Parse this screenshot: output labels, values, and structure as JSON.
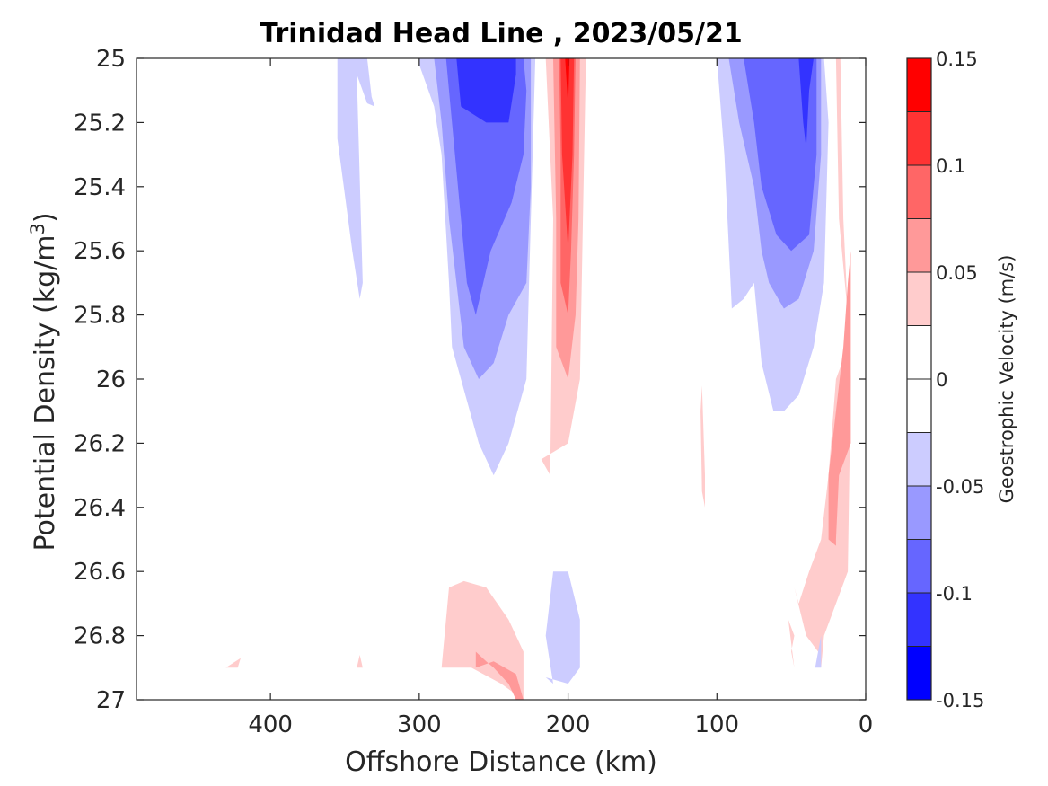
{
  "chart_data": {
    "type": "heatmap",
    "title": "Trinidad Head Line , 2023/05/21",
    "xlabel": "Offshore Distance (km)",
    "ylabel": "Potential Density (kg/m³)",
    "ylabel_parts": {
      "main": "Potential Density (kg/m",
      "sup": "3",
      "end": ")"
    },
    "xlim": [
      490,
      0
    ],
    "ylim": [
      25,
      27
    ],
    "x_reversed": true,
    "y_reversed": true,
    "x_ticks": [
      400,
      300,
      200,
      100,
      0
    ],
    "x_tick_labels": [
      "400",
      "300",
      "200",
      "100",
      "0"
    ],
    "y_ticks": [
      25,
      25.2,
      25.4,
      25.6,
      25.8,
      26,
      26.2,
      26.4,
      26.6,
      26.8,
      27
    ],
    "y_tick_labels": [
      "25",
      "25.2",
      "25.4",
      "25.6",
      "25.8",
      "26",
      "26.2",
      "26.4",
      "26.6",
      "26.8",
      "27"
    ],
    "grid": false,
    "colorbar": {
      "label": "Geostrophic Velocity (m/s)",
      "range": [
        -0.15,
        0.15
      ],
      "levels": [
        -0.15,
        -0.125,
        -0.1,
        -0.075,
        -0.05,
        -0.025,
        0,
        0.025,
        0.05,
        0.075,
        0.1,
        0.125,
        0.15
      ],
      "colors": [
        "#0000ff",
        "#3333ff",
        "#6666ff",
        "#9999ff",
        "#ccccff",
        "#ffffff",
        "#ffffff",
        "#ffcccc",
        "#ff9999",
        "#ff6666",
        "#ff3333",
        "#ff0000"
      ],
      "tick_values": [
        0.15,
        0.1,
        0.05,
        0,
        -0.05,
        -0.1,
        -0.15
      ],
      "tick_labels": [
        "0.15",
        "0.1",
        "0.05",
        "0",
        "-0.05",
        "-0.1",
        "-0.15"
      ]
    },
    "regions": [
      {
        "level": -0.05,
        "color": "#ccccff",
        "points": [
          [
            355,
            25
          ],
          [
            335,
            25
          ],
          [
            332,
            25.12
          ],
          [
            330,
            25.15
          ],
          [
            335,
            25.14
          ],
          [
            342,
            25.05
          ],
          [
            338,
            25.7
          ],
          [
            340,
            25.75
          ],
          [
            345,
            25.6
          ],
          [
            355,
            25.25
          ]
        ]
      },
      {
        "level": -0.05,
        "color": "#ccccff",
        "points": [
          [
            300,
            25
          ],
          [
            300,
            25.02
          ],
          [
            290,
            25.15
          ],
          [
            285,
            25.3
          ],
          [
            280,
            25.7
          ],
          [
            278,
            25.9
          ],
          [
            275,
            25.95
          ],
          [
            260,
            26.2
          ],
          [
            250,
            26.3
          ],
          [
            240,
            26.2
          ],
          [
            228,
            26
          ],
          [
            225,
            25.5
          ],
          [
            222,
            25
          ]
        ]
      },
      {
        "level": -0.075,
        "color": "#9999ff",
        "points": [
          [
            290,
            25
          ],
          [
            285,
            25.2
          ],
          [
            280,
            25.5
          ],
          [
            275,
            25.7
          ],
          [
            270,
            25.9
          ],
          [
            260,
            26
          ],
          [
            250,
            25.95
          ],
          [
            240,
            25.8
          ],
          [
            228,
            25.7
          ],
          [
            225,
            25.4
          ],
          [
            225,
            25
          ]
        ]
      },
      {
        "level": -0.1,
        "color": "#6666ff",
        "points": [
          [
            282,
            25
          ],
          [
            278,
            25.2
          ],
          [
            272,
            25.5
          ],
          [
            268,
            25.7
          ],
          [
            262,
            25.8
          ],
          [
            252,
            25.6
          ],
          [
            238,
            25.45
          ],
          [
            230,
            25.3
          ],
          [
            228,
            25.1
          ],
          [
            230,
            25
          ]
        ]
      },
      {
        "level": -0.125,
        "color": "#3333ff",
        "points": [
          [
            275,
            25
          ],
          [
            272,
            25.15
          ],
          [
            255,
            25.2
          ],
          [
            240,
            25.2
          ],
          [
            235,
            25.05
          ],
          [
            235,
            25
          ]
        ]
      },
      {
        "level": 0.025,
        "color": "#ffcccc",
        "points": [
          [
            215,
            25
          ],
          [
            210,
            25.5
          ],
          [
            212,
            26.3
          ],
          [
            218,
            26.25
          ],
          [
            200,
            26.2
          ],
          [
            192,
            26
          ],
          [
            190,
            25.5
          ],
          [
            188,
            25
          ]
        ]
      },
      {
        "level": 0.05,
        "color": "#ff9999",
        "points": [
          [
            210,
            25
          ],
          [
            208,
            25.5
          ],
          [
            208,
            25.9
          ],
          [
            200,
            26
          ],
          [
            195,
            25.8
          ],
          [
            193,
            25.5
          ],
          [
            192,
            25
          ]
        ]
      },
      {
        "level": 0.075,
        "color": "#ff6666",
        "points": [
          [
            206,
            25
          ],
          [
            205,
            25.3
          ],
          [
            205,
            25.7
          ],
          [
            200,
            25.8
          ],
          [
            198,
            25.6
          ],
          [
            196,
            25.3
          ],
          [
            195,
            25
          ]
        ]
      },
      {
        "level": 0.1,
        "color": "#ff3333",
        "points": [
          [
            205,
            25
          ],
          [
            204,
            25.3
          ],
          [
            200,
            25.6
          ],
          [
            197,
            25.3
          ],
          [
            196,
            25
          ]
        ]
      },
      {
        "level": 0.125,
        "color": "#ff0000",
        "points": [
          [
            202,
            25
          ],
          [
            200,
            25.15
          ],
          [
            199,
            25
          ]
        ]
      },
      {
        "level": -0.05,
        "color": "#ccccff",
        "points": [
          [
            100,
            25
          ],
          [
            95,
            25.3
          ],
          [
            90,
            25.78
          ],
          [
            82,
            25.75
          ],
          [
            75,
            25.7
          ],
          [
            70,
            25.95
          ],
          [
            62,
            26.1
          ],
          [
            55,
            26.1
          ],
          [
            45,
            26.05
          ],
          [
            35,
            25.9
          ],
          [
            28,
            25.7
          ],
          [
            25,
            25.2
          ],
          [
            28,
            25
          ]
        ]
      },
      {
        "level": -0.075,
        "color": "#9999ff",
        "points": [
          [
            92,
            25
          ],
          [
            85,
            25.2
          ],
          [
            75,
            25.4
          ],
          [
            70,
            25.6
          ],
          [
            65,
            25.7
          ],
          [
            55,
            25.78
          ],
          [
            45,
            25.75
          ],
          [
            35,
            25.6
          ],
          [
            30,
            25.3
          ],
          [
            30,
            25
          ]
        ]
      },
      {
        "level": -0.1,
        "color": "#6666ff",
        "points": [
          [
            82,
            25
          ],
          [
            75,
            25.2
          ],
          [
            70,
            25.4
          ],
          [
            60,
            25.55
          ],
          [
            50,
            25.6
          ],
          [
            38,
            25.55
          ],
          [
            33,
            25.3
          ],
          [
            33,
            25
          ]
        ]
      },
      {
        "level": -0.125,
        "color": "#3333ff",
        "points": [
          [
            45,
            25
          ],
          [
            42,
            25.2
          ],
          [
            40,
            25.28
          ],
          [
            38,
            25.1
          ],
          [
            35,
            25
          ]
        ]
      },
      {
        "level": 0.025,
        "color": "#ffcccc",
        "points": [
          [
            20,
            25
          ],
          [
            18,
            25.5
          ],
          [
            12,
            25.8
          ],
          [
            12,
            25.9
          ],
          [
            20,
            26
          ],
          [
            25,
            26.3
          ],
          [
            30,
            26.5
          ],
          [
            38,
            26.6
          ],
          [
            45,
            26.7
          ],
          [
            48,
            26.65
          ],
          [
            40,
            26.8
          ],
          [
            32,
            26.85
          ],
          [
            30,
            26.9
          ],
          [
            28,
            26.8
          ],
          [
            12,
            26.6
          ],
          [
            10,
            26
          ],
          [
            15,
            25.5
          ],
          [
            17,
            25
          ]
        ]
      },
      {
        "level": 0.05,
        "color": "#ff9999",
        "points": [
          [
            10,
            25.6
          ],
          [
            10,
            26.2
          ],
          [
            18,
            26.3
          ],
          [
            20,
            26.5
          ],
          [
            20,
            26.52
          ],
          [
            25,
            26.5
          ],
          [
            25,
            26.3
          ],
          [
            20,
            26.1
          ],
          [
            15,
            25.9
          ],
          [
            12,
            25.7
          ]
        ]
      },
      {
        "level": 0.025,
        "color": "#ffcccc",
        "points": [
          [
            110,
            26.02
          ],
          [
            108,
            26.3
          ],
          [
            108,
            26.4
          ],
          [
            110,
            26.35
          ],
          [
            111,
            26.1
          ]
        ]
      },
      {
        "level": 0.025,
        "color": "#ffcccc",
        "points": [
          [
            280,
            26.65
          ],
          [
            270,
            26.63
          ],
          [
            255,
            26.65
          ],
          [
            240,
            26.75
          ],
          [
            230,
            26.85
          ],
          [
            230,
            27
          ],
          [
            245,
            26.95
          ],
          [
            265,
            26.9
          ],
          [
            280,
            26.9
          ],
          [
            285,
            26.9
          ]
        ]
      },
      {
        "level": 0.05,
        "color": "#ff9999",
        "points": [
          [
            262,
            26.85
          ],
          [
            255,
            26.88
          ],
          [
            250,
            26.9
          ],
          [
            240,
            26.95
          ],
          [
            235,
            27
          ],
          [
            230,
            27
          ],
          [
            235,
            26.92
          ],
          [
            250,
            26.88
          ],
          [
            262,
            26.9
          ]
        ]
      },
      {
        "level": -0.05,
        "color": "#ccccff",
        "points": [
          [
            210,
            26.6
          ],
          [
            215,
            26.8
          ],
          [
            210,
            26.95
          ],
          [
            215,
            26.93
          ],
          [
            200,
            26.95
          ],
          [
            192,
            26.9
          ],
          [
            192,
            26.75
          ],
          [
            200,
            26.6
          ]
        ]
      },
      {
        "level": 0.025,
        "color": "#ffcccc",
        "points": [
          [
            52,
            26.75
          ],
          [
            48,
            26.8
          ],
          [
            50,
            26.85
          ],
          [
            48,
            26.9
          ]
        ]
      },
      {
        "level": -0.05,
        "color": "#ccccff",
        "points": [
          [
            30,
            26.8
          ],
          [
            30,
            26.9
          ],
          [
            34,
            26.9
          ]
        ]
      },
      {
        "level": 0.025,
        "color": "#ffcccc",
        "points": [
          [
            430,
            26.9
          ],
          [
            422,
            26.9
          ],
          [
            420,
            26.87
          ]
        ]
      },
      {
        "level": 0.025,
        "color": "#ffcccc",
        "points": [
          [
            342,
            26.9
          ],
          [
            338,
            26.9
          ],
          [
            340,
            26.86
          ]
        ]
      }
    ]
  }
}
